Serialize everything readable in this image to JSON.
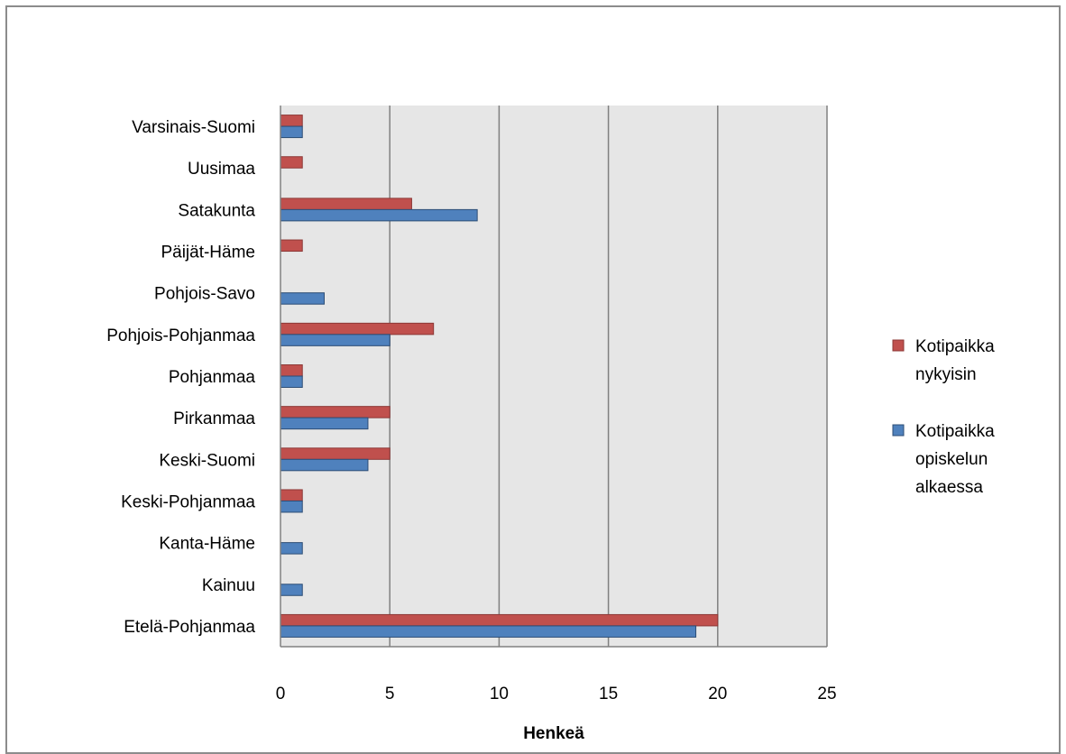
{
  "chart_data": {
    "type": "bar",
    "orientation": "horizontal",
    "categories": [
      "Etelä-Pohjanmaa",
      "Kainuu",
      "Kanta-Häme",
      "Keski-Pohjanmaa",
      "Keski-Suomi",
      "Pirkanmaa",
      "Pohjanmaa",
      "Pohjois-Pohjanmaa",
      "Pohjois-Savo",
      "Päijät-Häme",
      "Satakunta",
      "Uusimaa",
      "Varsinais-Suomi"
    ],
    "series": [
      {
        "name": "Kotipaikka opiskelun alkaessa",
        "color": "#4f81bd",
        "values": [
          19,
          1,
          1,
          1,
          4,
          4,
          1,
          5,
          2,
          0,
          9,
          0,
          1
        ]
      },
      {
        "name": "Kotipaikka nykyisin",
        "color": "#c0504d",
        "values": [
          20,
          0,
          0,
          1,
          5,
          5,
          1,
          7,
          0,
          1,
          6,
          1,
          1
        ]
      }
    ],
    "xlabel": "Henkeä",
    "ylabel": "",
    "xlim": [
      0,
      25
    ],
    "xticks": [
      0,
      5,
      10,
      15,
      20,
      25
    ],
    "grid": true,
    "legend_position": "right"
  },
  "legend": {
    "items": [
      {
        "line1": "Kotipaikka",
        "line2": "nykyisin",
        "line3": "",
        "color": "#c0504d"
      },
      {
        "line1": "Kotipaikka",
        "line2": "opiskelun",
        "line3": "alkaessa",
        "color": "#4f81bd"
      }
    ]
  },
  "colors": {
    "plot_background": "#e6e6e6",
    "gridline": "#808080",
    "frame_border": "#8c8c8c"
  }
}
